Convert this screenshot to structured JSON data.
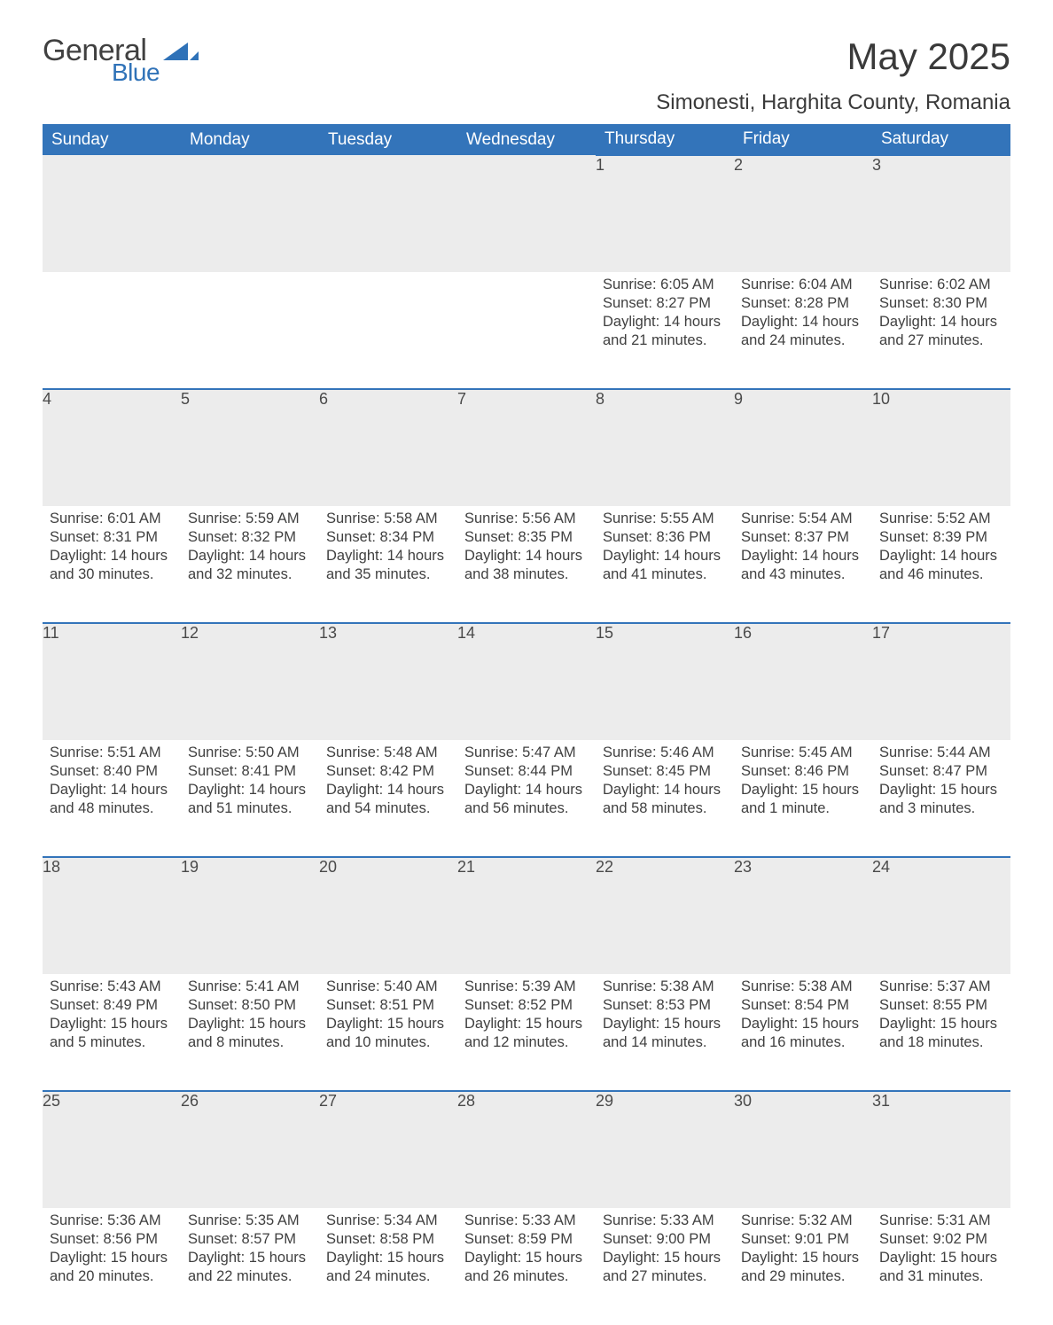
{
  "brand": {
    "general": "General",
    "blue": "Blue"
  },
  "title": "May 2025",
  "location": "Simonesti, Harghita County, Romania",
  "theme": {
    "header_bg": "#3374ba",
    "header_text": "#ffffff",
    "daynum_bg": "#ececec",
    "daynum_border": "#3374ba",
    "body_text": "#404040",
    "page_bg": "#ffffff",
    "logo_gray": "#404040",
    "logo_blue": "#2f72b8"
  },
  "weekdays": [
    "Sunday",
    "Monday",
    "Tuesday",
    "Wednesday",
    "Thursday",
    "Friday",
    "Saturday"
  ],
  "weeks": [
    [
      null,
      null,
      null,
      null,
      {
        "n": "1",
        "sr": "Sunrise: 6:05 AM",
        "ss": "Sunset: 8:27 PM",
        "d1": "Daylight: 14 hours",
        "d2": "and 21 minutes."
      },
      {
        "n": "2",
        "sr": "Sunrise: 6:04 AM",
        "ss": "Sunset: 8:28 PM",
        "d1": "Daylight: 14 hours",
        "d2": "and 24 minutes."
      },
      {
        "n": "3",
        "sr": "Sunrise: 6:02 AM",
        "ss": "Sunset: 8:30 PM",
        "d1": "Daylight: 14 hours",
        "d2": "and 27 minutes."
      }
    ],
    [
      {
        "n": "4",
        "sr": "Sunrise: 6:01 AM",
        "ss": "Sunset: 8:31 PM",
        "d1": "Daylight: 14 hours",
        "d2": "and 30 minutes."
      },
      {
        "n": "5",
        "sr": "Sunrise: 5:59 AM",
        "ss": "Sunset: 8:32 PM",
        "d1": "Daylight: 14 hours",
        "d2": "and 32 minutes."
      },
      {
        "n": "6",
        "sr": "Sunrise: 5:58 AM",
        "ss": "Sunset: 8:34 PM",
        "d1": "Daylight: 14 hours",
        "d2": "and 35 minutes."
      },
      {
        "n": "7",
        "sr": "Sunrise: 5:56 AM",
        "ss": "Sunset: 8:35 PM",
        "d1": "Daylight: 14 hours",
        "d2": "and 38 minutes."
      },
      {
        "n": "8",
        "sr": "Sunrise: 5:55 AM",
        "ss": "Sunset: 8:36 PM",
        "d1": "Daylight: 14 hours",
        "d2": "and 41 minutes."
      },
      {
        "n": "9",
        "sr": "Sunrise: 5:54 AM",
        "ss": "Sunset: 8:37 PM",
        "d1": "Daylight: 14 hours",
        "d2": "and 43 minutes."
      },
      {
        "n": "10",
        "sr": "Sunrise: 5:52 AM",
        "ss": "Sunset: 8:39 PM",
        "d1": "Daylight: 14 hours",
        "d2": "and 46 minutes."
      }
    ],
    [
      {
        "n": "11",
        "sr": "Sunrise: 5:51 AM",
        "ss": "Sunset: 8:40 PM",
        "d1": "Daylight: 14 hours",
        "d2": "and 48 minutes."
      },
      {
        "n": "12",
        "sr": "Sunrise: 5:50 AM",
        "ss": "Sunset: 8:41 PM",
        "d1": "Daylight: 14 hours",
        "d2": "and 51 minutes."
      },
      {
        "n": "13",
        "sr": "Sunrise: 5:48 AM",
        "ss": "Sunset: 8:42 PM",
        "d1": "Daylight: 14 hours",
        "d2": "and 54 minutes."
      },
      {
        "n": "14",
        "sr": "Sunrise: 5:47 AM",
        "ss": "Sunset: 8:44 PM",
        "d1": "Daylight: 14 hours",
        "d2": "and 56 minutes."
      },
      {
        "n": "15",
        "sr": "Sunrise: 5:46 AM",
        "ss": "Sunset: 8:45 PM",
        "d1": "Daylight: 14 hours",
        "d2": "and 58 minutes."
      },
      {
        "n": "16",
        "sr": "Sunrise: 5:45 AM",
        "ss": "Sunset: 8:46 PM",
        "d1": "Daylight: 15 hours",
        "d2": "and 1 minute."
      },
      {
        "n": "17",
        "sr": "Sunrise: 5:44 AM",
        "ss": "Sunset: 8:47 PM",
        "d1": "Daylight: 15 hours",
        "d2": "and 3 minutes."
      }
    ],
    [
      {
        "n": "18",
        "sr": "Sunrise: 5:43 AM",
        "ss": "Sunset: 8:49 PM",
        "d1": "Daylight: 15 hours",
        "d2": "and 5 minutes."
      },
      {
        "n": "19",
        "sr": "Sunrise: 5:41 AM",
        "ss": "Sunset: 8:50 PM",
        "d1": "Daylight: 15 hours",
        "d2": "and 8 minutes."
      },
      {
        "n": "20",
        "sr": "Sunrise: 5:40 AM",
        "ss": "Sunset: 8:51 PM",
        "d1": "Daylight: 15 hours",
        "d2": "and 10 minutes."
      },
      {
        "n": "21",
        "sr": "Sunrise: 5:39 AM",
        "ss": "Sunset: 8:52 PM",
        "d1": "Daylight: 15 hours",
        "d2": "and 12 minutes."
      },
      {
        "n": "22",
        "sr": "Sunrise: 5:38 AM",
        "ss": "Sunset: 8:53 PM",
        "d1": "Daylight: 15 hours",
        "d2": "and 14 minutes."
      },
      {
        "n": "23",
        "sr": "Sunrise: 5:38 AM",
        "ss": "Sunset: 8:54 PM",
        "d1": "Daylight: 15 hours",
        "d2": "and 16 minutes."
      },
      {
        "n": "24",
        "sr": "Sunrise: 5:37 AM",
        "ss": "Sunset: 8:55 PM",
        "d1": "Daylight: 15 hours",
        "d2": "and 18 minutes."
      }
    ],
    [
      {
        "n": "25",
        "sr": "Sunrise: 5:36 AM",
        "ss": "Sunset: 8:56 PM",
        "d1": "Daylight: 15 hours",
        "d2": "and 20 minutes."
      },
      {
        "n": "26",
        "sr": "Sunrise: 5:35 AM",
        "ss": "Sunset: 8:57 PM",
        "d1": "Daylight: 15 hours",
        "d2": "and 22 minutes."
      },
      {
        "n": "27",
        "sr": "Sunrise: 5:34 AM",
        "ss": "Sunset: 8:58 PM",
        "d1": "Daylight: 15 hours",
        "d2": "and 24 minutes."
      },
      {
        "n": "28",
        "sr": "Sunrise: 5:33 AM",
        "ss": "Sunset: 8:59 PM",
        "d1": "Daylight: 15 hours",
        "d2": "and 26 minutes."
      },
      {
        "n": "29",
        "sr": "Sunrise: 5:33 AM",
        "ss": "Sunset: 9:00 PM",
        "d1": "Daylight: 15 hours",
        "d2": "and 27 minutes."
      },
      {
        "n": "30",
        "sr": "Sunrise: 5:32 AM",
        "ss": "Sunset: 9:01 PM",
        "d1": "Daylight: 15 hours",
        "d2": "and 29 minutes."
      },
      {
        "n": "31",
        "sr": "Sunrise: 5:31 AM",
        "ss": "Sunset: 9:02 PM",
        "d1": "Daylight: 15 hours",
        "d2": "and 31 minutes."
      }
    ]
  ]
}
